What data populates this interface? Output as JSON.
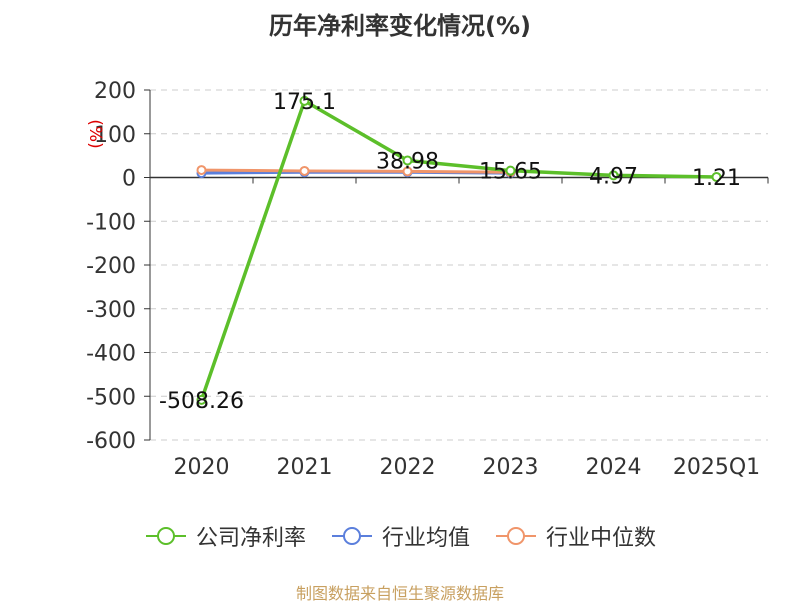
{
  "title": "历年净利率变化情况(%)",
  "footer": "制图数据来自恒生聚源数据库",
  "colors": {
    "company": "#5cbf2a",
    "industry_avg": "#5b7fdc",
    "industry_median": "#f0956a"
  },
  "chart_data": {
    "type": "line",
    "title": "历年净利率变化情况(%)",
    "ylabel": "(%)",
    "categories": [
      "2020",
      "2021",
      "2022",
      "2023",
      "2024",
      "2025Q1"
    ],
    "ylim": [
      -600,
      200
    ],
    "yticks": [
      "200",
      "100",
      "0",
      "-100",
      "-200",
      "-300",
      "-400",
      "-500",
      "-600"
    ],
    "grid": true,
    "legend_position": "bottom",
    "series": [
      {
        "name": "公司净利率",
        "values": [
          -508.26,
          175.1,
          38.98,
          15.65,
          4.97,
          1.21
        ],
        "labels": [
          "-508.26",
          "175.1",
          "38.98",
          "15.65",
          "4.97",
          "1.21"
        ]
      },
      {
        "name": "行业均值",
        "values": [
          10,
          12,
          12,
          10,
          null,
          null
        ]
      },
      {
        "name": "行业中位数",
        "values": [
          17,
          15,
          14,
          12,
          null,
          null
        ]
      }
    ]
  }
}
